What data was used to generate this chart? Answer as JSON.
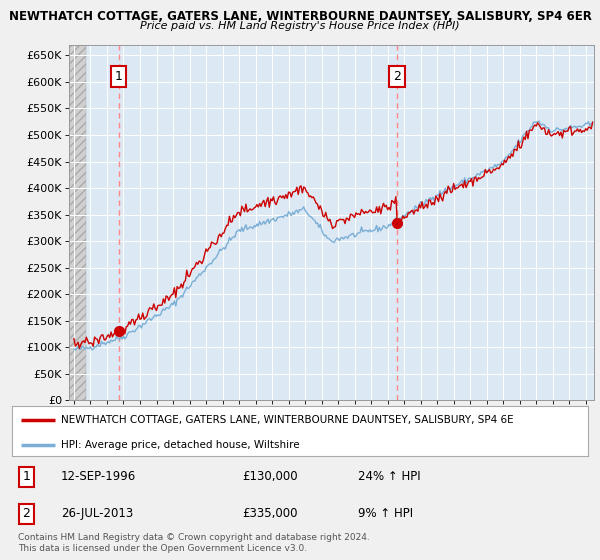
{
  "title1": "NEWTHATCH COTTAGE, GATERS LANE, WINTERBOURNE DAUNTSEY, SALISBURY, SP4 6ER",
  "title2": "Price paid vs. HM Land Registry's House Price Index (HPI)",
  "ylabel_ticks": [
    "£0",
    "£50K",
    "£100K",
    "£150K",
    "£200K",
    "£250K",
    "£300K",
    "£350K",
    "£400K",
    "£450K",
    "£500K",
    "£550K",
    "£600K",
    "£650K"
  ],
  "ytick_values": [
    0,
    50000,
    100000,
    150000,
    200000,
    250000,
    300000,
    350000,
    400000,
    450000,
    500000,
    550000,
    600000,
    650000
  ],
  "ylim": [
    0,
    670000
  ],
  "xlim_start": 1993.7,
  "xlim_end": 2025.5,
  "sale1_x": 1996.7,
  "sale1_y": 130000,
  "sale2_x": 2013.57,
  "sale2_y": 335000,
  "legend_line1": "NEWTHATCH COTTAGE, GATERS LANE, WINTERBOURNE DAUNTSEY, SALISBURY, SP4 6E",
  "legend_line2": "HPI: Average price, detached house, Wiltshire",
  "annotation1_date": "12-SEP-1996",
  "annotation1_price": "£130,000",
  "annotation1_hpi": "24% ↑ HPI",
  "annotation2_date": "26-JUL-2013",
  "annotation2_price": "£335,000",
  "annotation2_hpi": "9% ↑ HPI",
  "footnote": "Contains HM Land Registry data © Crown copyright and database right 2024.\nThis data is licensed under the Open Government Licence v3.0.",
  "red_line_color": "#cc0000",
  "blue_line_color": "#7aaed6",
  "plot_bg_color": "#dce9f5",
  "hatch_bg_color": "#c8c8c8",
  "bg_color": "#f0f0f0",
  "grid_color": "#ffffff",
  "dashed_line_color": "#ff8888"
}
